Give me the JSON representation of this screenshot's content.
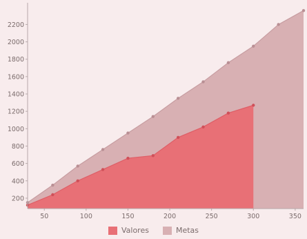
{
  "chart_data": {
    "type": "area",
    "stacked": false,
    "x": [
      30,
      60,
      90,
      120,
      150,
      180,
      210,
      240,
      270,
      300,
      330,
      360
    ],
    "series": [
      {
        "name": "Valores",
        "color": "#e87076",
        "x": [
          30,
          60,
          90,
          120,
          150,
          180,
          210,
          240,
          270,
          300
        ],
        "values": [
          120,
          240,
          400,
          530,
          660,
          690,
          900,
          1020,
          1180,
          1270
        ]
      },
      {
        "name": "Metas",
        "color": "#d8b0b3",
        "x": [
          30,
          60,
          90,
          120,
          150,
          180,
          210,
          240,
          270,
          300,
          330,
          360
        ],
        "values": [
          150,
          350,
          570,
          760,
          950,
          1140,
          1350,
          1540,
          1760,
          1950,
          2200,
          2360
        ]
      }
    ],
    "xlim": [
      30,
      360
    ],
    "ylim": [
      80,
      2450
    ],
    "xticks": [
      50,
      100,
      150,
      200,
      250,
      300,
      350
    ],
    "yticks": [
      200,
      400,
      600,
      800,
      1000,
      1200,
      1400,
      1600,
      1800,
      2000,
      2200
    ],
    "title": "",
    "xlabel": "",
    "ylabel": "",
    "grid": false,
    "legend_position": "bottom",
    "background": "#f8eced"
  }
}
